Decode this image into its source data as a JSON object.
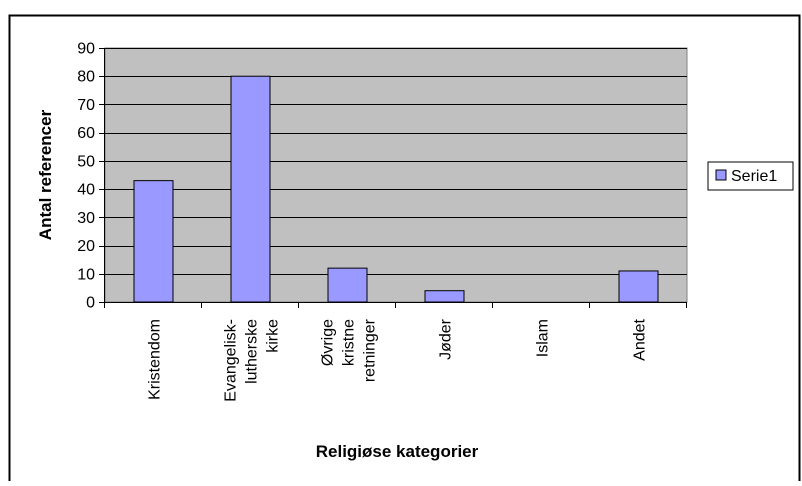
{
  "chart_data": {
    "type": "bar",
    "categories": [
      [
        "Kristendom"
      ],
      [
        "Evangelisk-",
        "lutherske",
        "kirke"
      ],
      [
        "Øvrige",
        "kristne",
        "retninger"
      ],
      [
        "Jøder"
      ],
      [
        "Islam"
      ],
      [
        "Andet"
      ]
    ],
    "series": [
      {
        "name": "Serie1",
        "values": [
          43,
          80,
          12,
          4,
          0,
          11
        ]
      }
    ],
    "xlabel": "Religiøse kategorier",
    "ylabel": "Antal referencer",
    "ylim": [
      0,
      90
    ],
    "yticks": [
      "0",
      "10",
      "20",
      "30",
      "40",
      "50",
      "60",
      "70",
      "80",
      "90"
    ],
    "grid": true,
    "legend": "right",
    "colors": {
      "bar_fill": "#9999ff",
      "bar_stroke": "#000000",
      "plot_bg": "#c0c0c0",
      "grid": "#000000",
      "frame": "#000000",
      "page_bg": "#ffffff"
    }
  }
}
